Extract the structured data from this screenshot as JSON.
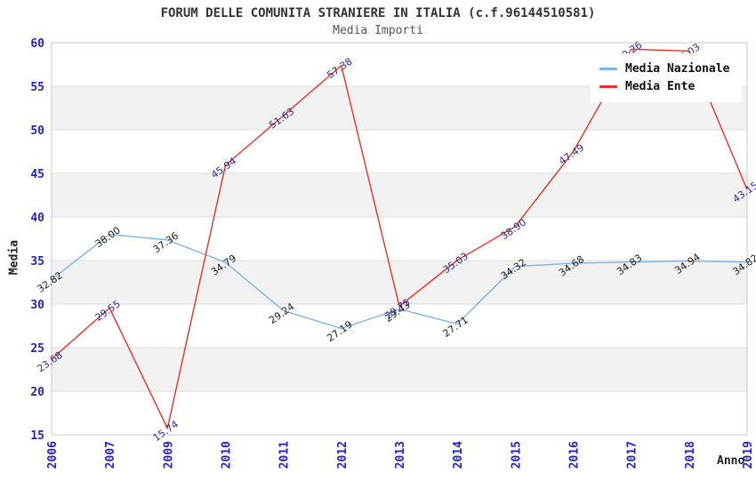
{
  "chart_data": {
    "type": "line",
    "title": "FORUM DELLE COMUNITA STRANIERE IN ITALIA (c.f.96144510581)",
    "subtitle": "Media Importi",
    "xlabel": "Anno",
    "ylabel": "Media",
    "ylim": [
      15,
      60
    ],
    "ytick_step": 5,
    "yticks": [
      15,
      20,
      25,
      30,
      35,
      40,
      45,
      50,
      55,
      60
    ],
    "grid": true,
    "legend_position": "top-right",
    "categories": [
      "2006",
      "2007",
      "2009",
      "2010",
      "2011",
      "2012",
      "2013",
      "2014",
      "2015",
      "2016",
      "2017",
      "2018",
      "2019"
    ],
    "series": [
      {
        "name": "Media Nazionale",
        "color": "#7fb2e5",
        "label_color": "#1c1c1c",
        "values": [
          32.82,
          38.0,
          37.36,
          34.79,
          29.24,
          27.19,
          29.43,
          27.71,
          34.32,
          34.68,
          34.83,
          34.94,
          34.82
        ],
        "labels": [
          "32.82",
          "38.00",
          "37.36",
          "34.79",
          "29.24",
          "27.19",
          "29.43",
          "27.71",
          "34.32",
          "34.68",
          "34.83",
          "34.94",
          "34.82"
        ]
      },
      {
        "name": "Media Ente",
        "color": "#e73127",
        "label_color": "#2c2c9c",
        "values": [
          23.68,
          29.55,
          15.74,
          45.94,
          51.63,
          57.38,
          29.75,
          35.03,
          38.9,
          47.49,
          59.26,
          59.03,
          43.15
        ],
        "labels": [
          "23.68",
          "29.55",
          "15.74",
          "45.94",
          "51.63",
          "57.38",
          "29.75",
          "35.03",
          "38.90",
          "47.49",
          "59.26",
          "59.03",
          "43.15"
        ]
      }
    ],
    "colors": {
      "tick_label": "#2222cc",
      "band_fill": "#f2f2f2",
      "grid_line": "#dcdcdc",
      "plot_border": "#c8c8c8",
      "title": "#333333",
      "subtitle": "#555555"
    }
  }
}
